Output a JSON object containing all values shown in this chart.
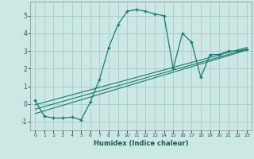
{
  "xlabel": "Humidex (Indice chaleur)",
  "background_color": "#cce8e4",
  "grid_color": "#aacfcb",
  "line_color": "#1a7a6e",
  "xlim": [
    -0.5,
    23.5
  ],
  "ylim": [
    -1.5,
    5.8
  ],
  "xticks": [
    0,
    1,
    2,
    3,
    4,
    5,
    6,
    7,
    8,
    9,
    10,
    11,
    12,
    13,
    14,
    15,
    16,
    17,
    18,
    19,
    20,
    21,
    22,
    23
  ],
  "yticks": [
    -1,
    0,
    1,
    2,
    3,
    4,
    5
  ],
  "series1_x": [
    0,
    1,
    2,
    3,
    4,
    5,
    6,
    7,
    8,
    9,
    10,
    11,
    12,
    13,
    14,
    15,
    16,
    17,
    18,
    19,
    20,
    21,
    22,
    23
  ],
  "series1_y": [
    0.2,
    -0.7,
    -0.8,
    -0.8,
    -0.75,
    -0.9,
    0.1,
    1.4,
    3.2,
    4.5,
    5.25,
    5.35,
    5.25,
    5.1,
    5.0,
    2.0,
    4.0,
    3.5,
    1.5,
    2.8,
    2.8,
    3.0,
    3.0,
    3.1
  ],
  "series2_x": [
    0,
    23
  ],
  "series2_y": [
    -0.55,
    3.05
  ],
  "series3_x": [
    0,
    23
  ],
  "series3_y": [
    -0.3,
    3.1
  ],
  "series4_x": [
    0,
    23
  ],
  "series4_y": [
    -0.05,
    3.2
  ]
}
